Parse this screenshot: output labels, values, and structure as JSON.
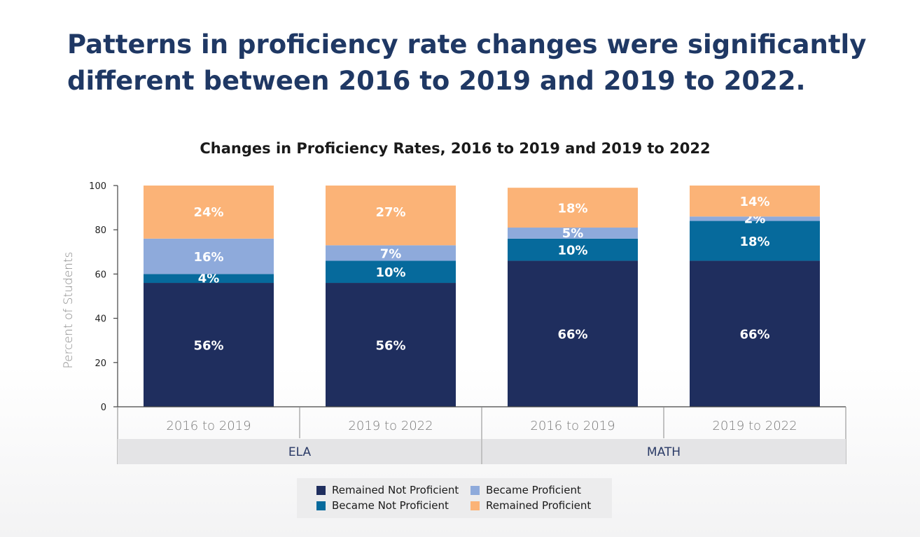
{
  "header": {
    "title": "Patterns in proficiency rate changes were significantly different between 2016 to 2019 and 2019 to 2022."
  },
  "chart_data": {
    "type": "bar",
    "stacked": true,
    "title": "Changes in Proficiency Rates, 2016 to 2019 and 2019 to 2022",
    "ylabel": "Percent of Students",
    "xlabel": "",
    "ylim": [
      0,
      100
    ],
    "yticks": [
      0,
      20,
      40,
      60,
      80,
      100
    ],
    "categories": [
      "2016 to 2019",
      "2019 to 2022",
      "2016 to 2019",
      "2019 to 2022"
    ],
    "groups": [
      {
        "label": "ELA",
        "span": [
          0,
          1
        ]
      },
      {
        "label": "MATH",
        "span": [
          2,
          3
        ]
      }
    ],
    "series": [
      {
        "name": "Remained Not Proficient",
        "color": "#1f2e5e",
        "values": [
          56,
          56,
          66,
          66
        ],
        "labels": [
          "56%",
          "56%",
          "66%",
          "66%"
        ]
      },
      {
        "name": "Became Not Proficient",
        "color": "#066a9c",
        "values": [
          4,
          10,
          10,
          18
        ],
        "labels": [
          "4%",
          "10%",
          "10%",
          "18%"
        ]
      },
      {
        "name": "Became Proficient",
        "color": "#8eaadb",
        "values": [
          16,
          7,
          5,
          2
        ],
        "labels": [
          "16%",
          "7%",
          "5%",
          "2%"
        ]
      },
      {
        "name": "Remained Proficient",
        "color": "#fbb377",
        "values": [
          24,
          27,
          18,
          14
        ],
        "labels": [
          "24%",
          "27%",
          "18%",
          "14%"
        ]
      }
    ],
    "grid": false,
    "legend_position": "bottom"
  }
}
